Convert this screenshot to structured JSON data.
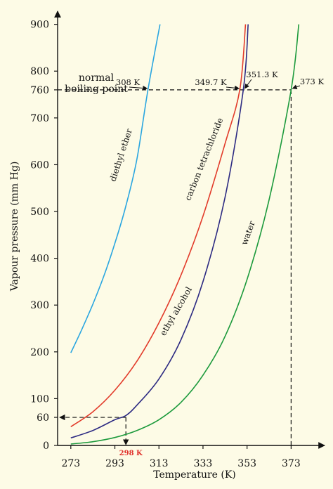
{
  "chart_data": {
    "type": "line",
    "xlabel": "Temperature (K)",
    "ylabel": "Vapour pressure (mm Hg)",
    "xlim": [
      267,
      385
    ],
    "ylim": [
      0,
      925
    ],
    "x_ticks": [
      273,
      293,
      313,
      333,
      353,
      373
    ],
    "x_tick_labels": [
      "273",
      "293",
      "313",
      "333",
      "353",
      "373"
    ],
    "y_ticks": [
      0,
      60,
      100,
      200,
      300,
      400,
      500,
      600,
      700,
      760,
      800,
      900
    ],
    "y_tick_labels": [
      "0",
      "60",
      "100",
      "200",
      "300",
      "400",
      "500",
      "600",
      "700",
      "760",
      "800",
      "900"
    ],
    "normal_boiling_label": [
      "normal",
      "boiling point"
    ],
    "normal_boiling_pressure": 760,
    "series": [
      {
        "name": "diethyl ether",
        "color": "#2aa6e0",
        "x": [
          273,
          278,
          283,
          288,
          293,
          298,
          303,
          308,
          313.5
        ],
        "y": [
          198,
          248,
          302,
          362,
          432,
          512,
          612,
          760,
          900
        ],
        "boiling_point": 308,
        "boiling_label": "308 K"
      },
      {
        "name": "carbon tetrachloride",
        "color": "#e23b2a",
        "x": [
          273,
          283,
          293,
          303,
          313,
          323,
          333,
          343,
          349.7,
          352.3
        ],
        "y": [
          40,
          72,
          118,
          180,
          262,
          364,
          490,
          645,
          760,
          900
        ],
        "boiling_point": 349.7,
        "boiling_label": "349.7 K"
      },
      {
        "name": "ethyl alcohol",
        "color": "#2c2a82",
        "x": [
          273,
          283,
          293,
          298,
          303,
          313,
          323,
          333,
          343,
          351.3,
          353.5
        ],
        "y": [
          16,
          32,
          55,
          64,
          86,
          142,
          226,
          350,
          530,
          760,
          900
        ],
        "boiling_point": 351.3,
        "boiling_label": "351.3 K"
      },
      {
        "name": "water",
        "color": "#1c9a3c",
        "x": [
          273,
          283,
          293,
          303,
          313,
          323,
          333,
          343,
          353,
          363,
          373,
          376.5
        ],
        "y": [
          3,
          8,
          17,
          32,
          55,
          92,
          150,
          233,
          355,
          525,
          760,
          900
        ],
        "boiling_point": 373,
        "boiling_label": "373 K"
      }
    ],
    "guide": {
      "x": 298,
      "y": 60,
      "label": "298 K",
      "label_color": "#e0302a"
    },
    "series_label_style": "rotated-along-curve",
    "grid": false,
    "legend": "none"
  }
}
